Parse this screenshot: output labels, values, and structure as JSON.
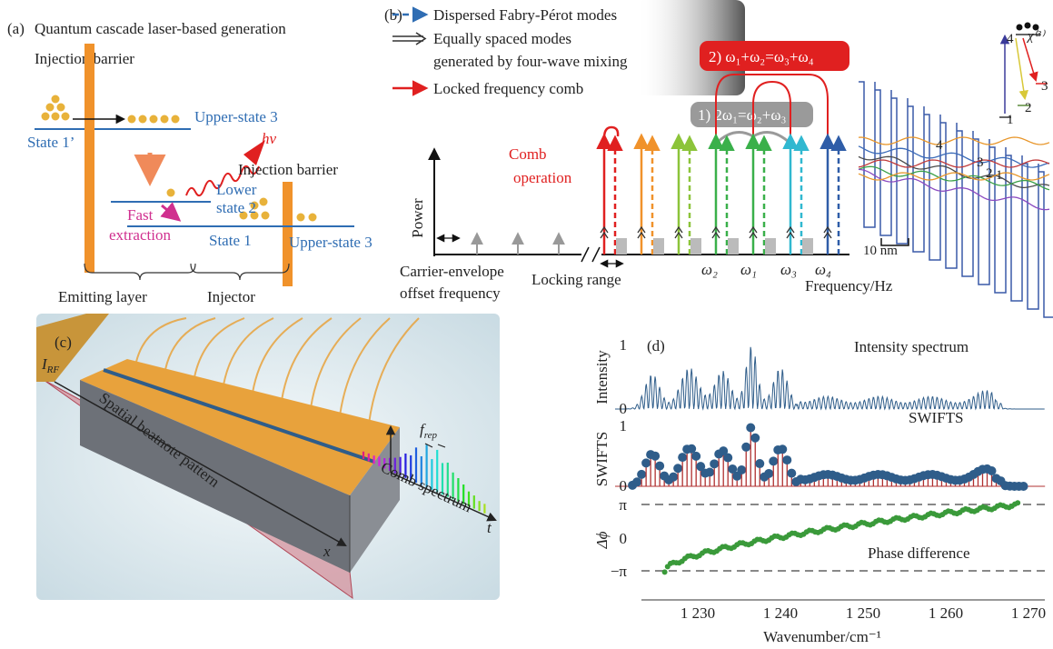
{
  "panel_a": {
    "label": "(a)",
    "title": "Quantum cascade laser-based generation",
    "injection_barrier_left": "Injection barrier",
    "upper_state_3_top": "Upper-state 3",
    "state_1_prime": "State 1’",
    "photon": "hν",
    "injection_barrier_right": "Injection barrier",
    "lower_state_2": [
      "Lower",
      "state 2"
    ],
    "fast_extraction": [
      "Fast",
      "extraction"
    ],
    "state_1": "State 1",
    "upper_state_3_right": "Upper-state 3",
    "emitting_layer": "Emitting layer",
    "injector": "Injector"
  },
  "panel_b": {
    "label": "(b)",
    "legend_dispersed": "Dispersed Fabry-Pérot modes",
    "legend_equal": [
      "Equally spaced modes",
      "generated by four-wave mixing"
    ],
    "legend_locked": "Locked frequency comb",
    "process_2": "2) ω₁+ω₂=ω₃+ω₄",
    "process_1": "1) 2ω₁=ω₂+ω₃",
    "comb_operation": [
      "Comb",
      "operation"
    ],
    "y_axis": "Power",
    "ceo": [
      "Carrier-envelope",
      "offset frequency"
    ],
    "locking_range": "Locking range",
    "omega_labels": [
      "ω₂",
      "ω₁",
      "ω₃",
      "ω₄"
    ],
    "x_axis": "Frequency/Hz",
    "scale_bar": "10 nm",
    "band_labels": [
      "4",
      "3",
      "2",
      "1"
    ],
    "inset_levels": [
      "4",
      "3",
      "2",
      "1"
    ],
    "chi": "χ⁽³⁾"
  },
  "panel_c": {
    "label": "(c)",
    "current": {
      "symbol": "I",
      "subscript": "RF"
    },
    "rep_rate": {
      "symbol": "f",
      "subscript": "rep"
    },
    "spatial": "Spatial beatnote pattern",
    "comb_spectrum": "Comb spectrum",
    "time_axis": "t",
    "space_axis": "x"
  },
  "panel_d": {
    "label": "(d)",
    "intensity_title": "Intensity spectrum",
    "swifts_title": "SWIFTS",
    "phase_title": "Phase difference",
    "y_labels": [
      "Intensity",
      "SWIFTS",
      "Δϕ"
    ],
    "intensity_ticks": [
      "1",
      "0"
    ],
    "swifts_ticks": [
      "1",
      "0"
    ],
    "phase_ticks": [
      "π",
      "0",
      "−π"
    ],
    "x_ticks": [
      "1 230",
      "1 240",
      "1 250",
      "1 260",
      "1 270"
    ],
    "x_label": "Wavenumber/cm⁻¹"
  }
}
